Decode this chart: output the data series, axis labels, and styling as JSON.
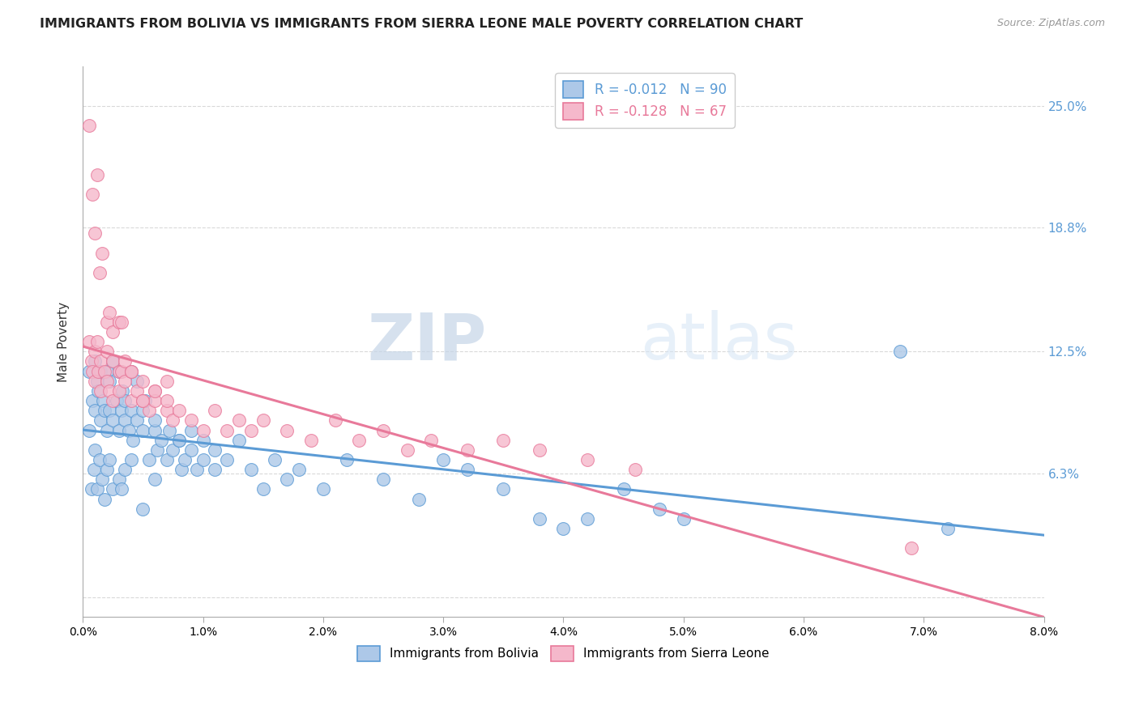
{
  "title": "IMMIGRANTS FROM BOLIVIA VS IMMIGRANTS FROM SIERRA LEONE MALE POVERTY CORRELATION CHART",
  "source": "Source: ZipAtlas.com",
  "ylabel": "Male Poverty",
  "yticks": [
    0.0,
    0.063,
    0.125,
    0.188,
    0.25
  ],
  "ytick_labels": [
    "",
    "6.3%",
    "12.5%",
    "18.8%",
    "25.0%"
  ],
  "xlim": [
    0.0,
    0.08
  ],
  "ylim": [
    -0.01,
    0.27
  ],
  "bolivia_R": -0.012,
  "bolivia_N": 90,
  "sierraleone_R": -0.128,
  "sierraleone_N": 67,
  "bolivia_color": "#adc8e8",
  "sierraleone_color": "#f5b8cb",
  "bolivia_line_color": "#5b9bd5",
  "sierraleone_line_color": "#e8799a",
  "background_color": "#ffffff",
  "grid_color": "#d9d9d9",
  "watermark_zip": "ZIP",
  "watermark_atlas": "atlas",
  "title_fontsize": 11.5,
  "bolivia_x": [
    0.0005,
    0.0008,
    0.001,
    0.001,
    0.0012,
    0.0013,
    0.0015,
    0.0015,
    0.0017,
    0.0018,
    0.002,
    0.002,
    0.0022,
    0.0022,
    0.0025,
    0.0025,
    0.0028,
    0.003,
    0.003,
    0.0032,
    0.0033,
    0.0035,
    0.0035,
    0.0038,
    0.004,
    0.004,
    0.0042,
    0.0045,
    0.0045,
    0.005,
    0.005,
    0.0052,
    0.0055,
    0.006,
    0.006,
    0.0062,
    0.0065,
    0.007,
    0.0072,
    0.0075,
    0.008,
    0.0082,
    0.0085,
    0.009,
    0.009,
    0.0095,
    0.01,
    0.01,
    0.011,
    0.011,
    0.012,
    0.013,
    0.014,
    0.015,
    0.016,
    0.017,
    0.018,
    0.02,
    0.022,
    0.025,
    0.028,
    0.03,
    0.032,
    0.035,
    0.038,
    0.04,
    0.042,
    0.045,
    0.048,
    0.05,
    0.0005,
    0.0007,
    0.0009,
    0.001,
    0.0012,
    0.0014,
    0.0016,
    0.0018,
    0.002,
    0.0022,
    0.0025,
    0.003,
    0.0032,
    0.0035,
    0.004,
    0.005,
    0.006,
    0.008,
    0.068,
    0.072
  ],
  "bolivia_y": [
    0.115,
    0.1,
    0.12,
    0.095,
    0.11,
    0.105,
    0.115,
    0.09,
    0.1,
    0.095,
    0.115,
    0.085,
    0.11,
    0.095,
    0.12,
    0.09,
    0.1,
    0.115,
    0.085,
    0.095,
    0.105,
    0.09,
    0.1,
    0.085,
    0.115,
    0.095,
    0.08,
    0.11,
    0.09,
    0.095,
    0.085,
    0.1,
    0.07,
    0.085,
    0.09,
    0.075,
    0.08,
    0.07,
    0.085,
    0.075,
    0.08,
    0.065,
    0.07,
    0.075,
    0.085,
    0.065,
    0.07,
    0.08,
    0.075,
    0.065,
    0.07,
    0.08,
    0.065,
    0.055,
    0.07,
    0.06,
    0.065,
    0.055,
    0.07,
    0.06,
    0.05,
    0.07,
    0.065,
    0.055,
    0.04,
    0.035,
    0.04,
    0.055,
    0.045,
    0.04,
    0.085,
    0.055,
    0.065,
    0.075,
    0.055,
    0.07,
    0.06,
    0.05,
    0.065,
    0.07,
    0.055,
    0.06,
    0.055,
    0.065,
    0.07,
    0.045,
    0.06,
    0.08,
    0.125,
    0.035
  ],
  "sierraleone_x": [
    0.0005,
    0.0007,
    0.0008,
    0.001,
    0.001,
    0.0012,
    0.0013,
    0.0015,
    0.0015,
    0.0018,
    0.002,
    0.002,
    0.0022,
    0.0025,
    0.0025,
    0.003,
    0.003,
    0.0032,
    0.0035,
    0.004,
    0.004,
    0.0045,
    0.005,
    0.005,
    0.0055,
    0.006,
    0.006,
    0.007,
    0.007,
    0.0075,
    0.008,
    0.009,
    0.01,
    0.011,
    0.012,
    0.013,
    0.014,
    0.015,
    0.017,
    0.019,
    0.021,
    0.023,
    0.025,
    0.027,
    0.029,
    0.032,
    0.035,
    0.038,
    0.042,
    0.046,
    0.0005,
    0.0008,
    0.001,
    0.0012,
    0.0014,
    0.0016,
    0.002,
    0.0022,
    0.0025,
    0.003,
    0.0032,
    0.0035,
    0.004,
    0.005,
    0.006,
    0.007,
    0.069
  ],
  "sierraleone_y": [
    0.13,
    0.12,
    0.115,
    0.125,
    0.11,
    0.13,
    0.115,
    0.12,
    0.105,
    0.115,
    0.11,
    0.125,
    0.105,
    0.12,
    0.1,
    0.115,
    0.105,
    0.115,
    0.11,
    0.1,
    0.115,
    0.105,
    0.1,
    0.11,
    0.095,
    0.105,
    0.1,
    0.095,
    0.1,
    0.09,
    0.095,
    0.09,
    0.085,
    0.095,
    0.085,
    0.09,
    0.085,
    0.09,
    0.085,
    0.08,
    0.09,
    0.08,
    0.085,
    0.075,
    0.08,
    0.075,
    0.08,
    0.075,
    0.07,
    0.065,
    0.24,
    0.205,
    0.185,
    0.215,
    0.165,
    0.175,
    0.14,
    0.145,
    0.135,
    0.14,
    0.14,
    0.12,
    0.115,
    0.1,
    0.105,
    0.11,
    0.025
  ]
}
